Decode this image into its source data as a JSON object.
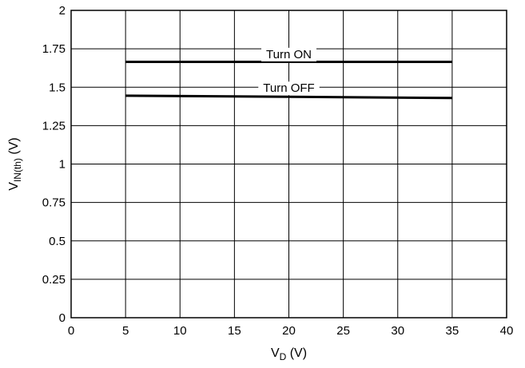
{
  "chart_data": {
    "type": "line",
    "title": "",
    "xlabel": {
      "main": "V",
      "sub": "D",
      "unit": " (V)"
    },
    "ylabel": {
      "main": "V",
      "sub": "IN(th)",
      "unit": " (V)"
    },
    "xlim": [
      0,
      40
    ],
    "ylim": [
      0,
      2
    ],
    "xticks": [
      0,
      5,
      10,
      15,
      20,
      25,
      30,
      35,
      40
    ],
    "xtick_labels": [
      "0",
      "5",
      "10",
      "15",
      "20",
      "25",
      "30",
      "35",
      "40"
    ],
    "yticks": [
      0,
      0.25,
      0.5,
      0.75,
      1,
      1.25,
      1.5,
      1.75,
      2
    ],
    "ytick_labels": [
      "0",
      "0.25",
      "0.5",
      "0.75",
      "1",
      "1.25",
      "1.5",
      "1.75",
      "2"
    ],
    "grid": true,
    "series": [
      {
        "name": "Turn ON",
        "x": [
          5,
          35
        ],
        "y": [
          1.665,
          1.665
        ],
        "label_x": 20,
        "label_y": 1.715
      },
      {
        "name": "Turn OFF",
        "x": [
          5,
          35
        ],
        "y": [
          1.445,
          1.43
        ],
        "label_x": 20,
        "label_y": 1.495
      }
    ]
  }
}
